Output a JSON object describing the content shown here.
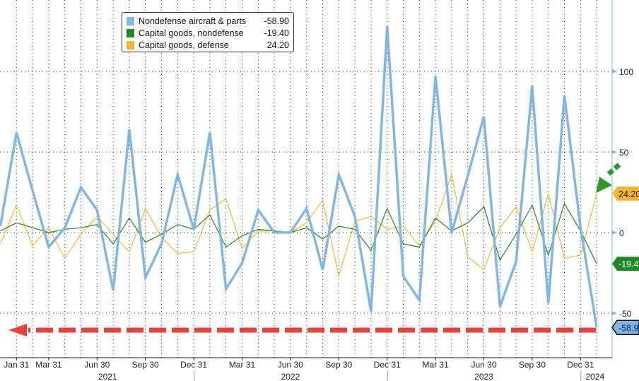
{
  "chart_data": {
    "type": "line",
    "x_start": "2020-12",
    "x_end": "2024-01",
    "frequency": "monthly",
    "x_tick_labels": [
      "Jan 31",
      "Mar 31",
      "Jun 30",
      "Sep 30",
      "Dec 31",
      "Mar 31",
      "Jun 30",
      "Sep 30",
      "Dec 31",
      "Mar 31",
      "Jun 30",
      "Sep 30",
      "Dec 31"
    ],
    "x_year_labels": [
      "2021",
      "2022",
      "2023",
      "2024"
    ],
    "y_ticks": [
      100,
      50,
      0,
      -50
    ],
    "ylim": [
      -68,
      144
    ],
    "y_axis_side": "right",
    "grid": true,
    "legend_position": "top-left",
    "series": [
      {
        "name": "Nondefense aircraft & parts",
        "last": "-58.90",
        "last_tag": "-58.9",
        "color": "#7fb6e6",
        "values": [
          4,
          62,
          26,
          -9,
          3,
          28,
          14,
          -36,
          64,
          -28,
          -7,
          36,
          2,
          62,
          -35,
          -19,
          14,
          0,
          0,
          15,
          -23,
          36,
          10,
          -49,
          128,
          -27,
          -42,
          97,
          0,
          35,
          72,
          -46,
          -18,
          91,
          -44,
          85,
          3,
          -58.9
        ]
      },
      {
        "name": "Capital goods, nondefense",
        "last": "-19.40",
        "last_tag": "-19.4",
        "color": "#1e8a22",
        "values": [
          1,
          6,
          3,
          0,
          2,
          3,
          5,
          -7,
          9,
          -6,
          -1,
          5,
          2,
          11,
          -9,
          -2,
          2,
          1,
          0,
          3,
          -4,
          4,
          2,
          -11,
          15,
          -7,
          -9,
          9,
          1,
          6,
          16,
          -17,
          -1,
          17,
          -14,
          18,
          1,
          -19.4
        ]
      },
      {
        "name": "Capital goods, defense",
        "last": "24.20",
        "last_tag": "24.20",
        "color": "#f5b731",
        "values": [
          -7,
          17,
          -8,
          3,
          -16,
          -1,
          10,
          -1,
          -12,
          15,
          -3,
          -13,
          -12,
          14,
          21,
          -10,
          1,
          1,
          0,
          6,
          20,
          -27,
          7,
          10,
          2,
          4,
          -8,
          7,
          36,
          -15,
          -23,
          3,
          16,
          -12,
          24,
          -16,
          -14,
          24.2
        ]
      }
    ],
    "annotations": [
      "green arrow pointing to latest defense value",
      "red dashed arrow along latest aircraft value"
    ]
  }
}
